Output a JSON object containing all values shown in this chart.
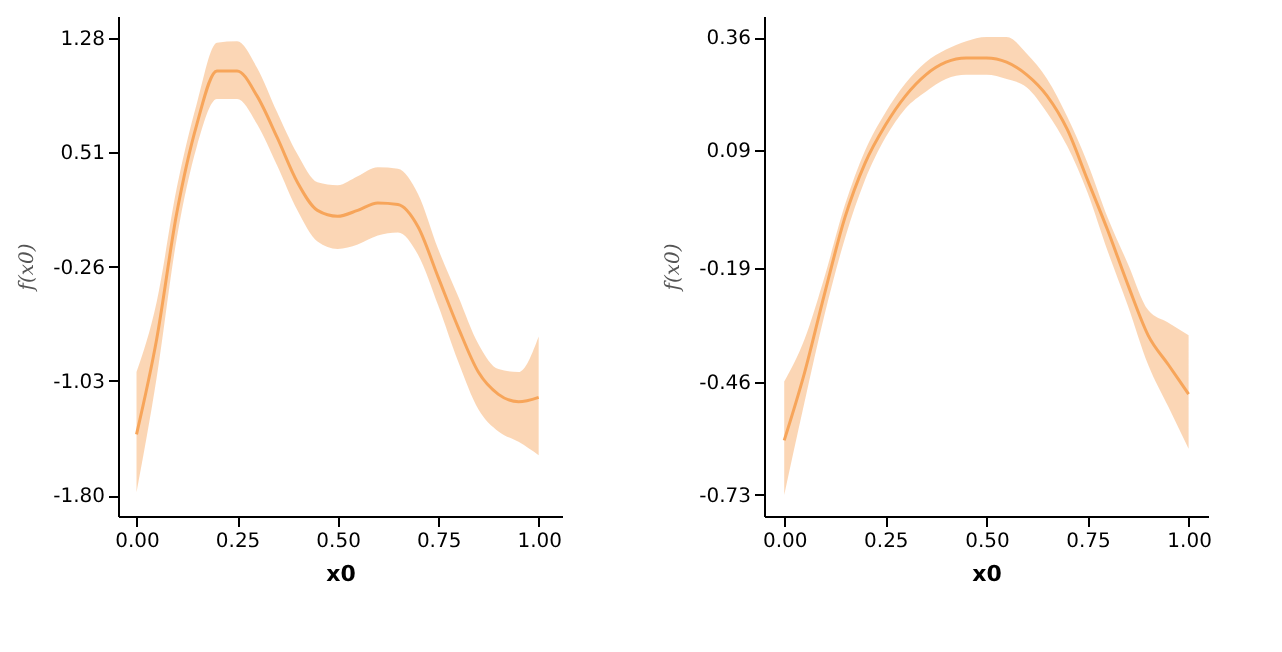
{
  "chart_data": [
    {
      "type": "line",
      "xlabel": "x0",
      "ylabel": "f(x0)",
      "grid": false,
      "marker": "none",
      "line_style": "solid",
      "xlim": [
        -0.046,
        1.058
      ],
      "ylim": [
        -1.94,
        1.43
      ],
      "xticks": [
        {
          "value": 0,
          "label": "0.00"
        },
        {
          "value": 0.25,
          "label": "0.25"
        },
        {
          "value": 0.5,
          "label": "0.50"
        },
        {
          "value": 0.75,
          "label": "0.75"
        },
        {
          "value": 1,
          "label": "1.00"
        }
      ],
      "yticks": [
        {
          "value": -1.8,
          "label": "-1.80"
        },
        -1.03,
        -0.26,
        0.51,
        1.28
      ],
      "x": [
        0,
        0.05,
        0.1,
        0.15,
        0.2,
        0.25,
        0.3,
        0.35,
        0.4,
        0.45,
        0.5,
        0.55,
        0.6,
        0.65,
        0.7,
        0.75,
        0.8,
        0.85,
        0.9,
        0.95,
        1.0
      ],
      "series": [
        {
          "color": "#f7a55a",
          "values": [
            -1.39,
            -0.75,
            0.1,
            0.7,
            1.06,
            1.06,
            0.89,
            0.61,
            0.31,
            0.12,
            0.08,
            0.12,
            0.17,
            0.16,
            0.01,
            -0.33,
            -0.67,
            -0.97,
            -1.12,
            -1.17,
            -1.14
          ],
          "lower": [
            -1.78,
            -1.01,
            -0.07,
            0.55,
            0.87,
            0.87,
            0.7,
            0.42,
            0.12,
            -0.09,
            -0.14,
            -0.11,
            -0.05,
            -0.03,
            -0.18,
            -0.52,
            -0.9,
            -1.22,
            -1.37,
            -1.44,
            -1.53
          ],
          "upper": [
            -0.97,
            -0.5,
            0.27,
            0.84,
            1.25,
            1.26,
            1.08,
            0.78,
            0.5,
            0.31,
            0.29,
            0.35,
            0.41,
            0.4,
            0.23,
            -0.14,
            -0.46,
            -0.78,
            -0.95,
            -0.97,
            -0.73
          ]
        }
      ]
    },
    {
      "type": "line",
      "xlabel": "x0",
      "ylabel": "f(x0)",
      "grid": false,
      "marker": "none",
      "line_style": "solid",
      "xlim": [
        -0.05,
        1.048
      ],
      "ylim": [
        -0.78,
        0.41
      ],
      "xticks": [
        {
          "value": 0,
          "label": "0.00"
        },
        {
          "value": 0.25,
          "label": "0.25"
        },
        {
          "value": 0.5,
          "label": "0.50"
        },
        {
          "value": 0.75,
          "label": "0.75"
        },
        {
          "value": 1,
          "label": "1.00"
        }
      ],
      "yticks": [
        -0.73,
        -0.46,
        -0.19,
        0.09,
        0.36
      ],
      "x": [
        0,
        0.05,
        0.1,
        0.15,
        0.2,
        0.25,
        0.3,
        0.35,
        0.4,
        0.45,
        0.5,
        0.55,
        0.6,
        0.65,
        0.7,
        0.75,
        0.8,
        0.85,
        0.9,
        0.95,
        1.0
      ],
      "series": [
        {
          "color": "#f7a55a",
          "values": [
            -0.6,
            -0.44,
            -0.25,
            -0.07,
            0.06,
            0.15,
            0.22,
            0.27,
            0.3,
            0.31,
            0.31,
            0.3,
            0.27,
            0.22,
            0.14,
            0.02,
            -0.1,
            -0.23,
            -0.35,
            -0.42,
            -0.49
          ],
          "lower": [
            -0.73,
            -0.51,
            -0.3,
            -0.12,
            0.02,
            0.12,
            0.19,
            0.23,
            0.26,
            0.27,
            0.27,
            0.26,
            0.24,
            0.18,
            0.1,
            -0.01,
            -0.15,
            -0.28,
            -0.42,
            -0.52,
            -0.62
          ],
          "upper": [
            -0.46,
            -0.36,
            -0.21,
            -0.04,
            0.09,
            0.18,
            0.25,
            0.3,
            0.33,
            0.35,
            0.36,
            0.36,
            0.32,
            0.26,
            0.17,
            0.06,
            -0.07,
            -0.18,
            -0.29,
            -0.32,
            -0.35
          ]
        }
      ]
    }
  ]
}
